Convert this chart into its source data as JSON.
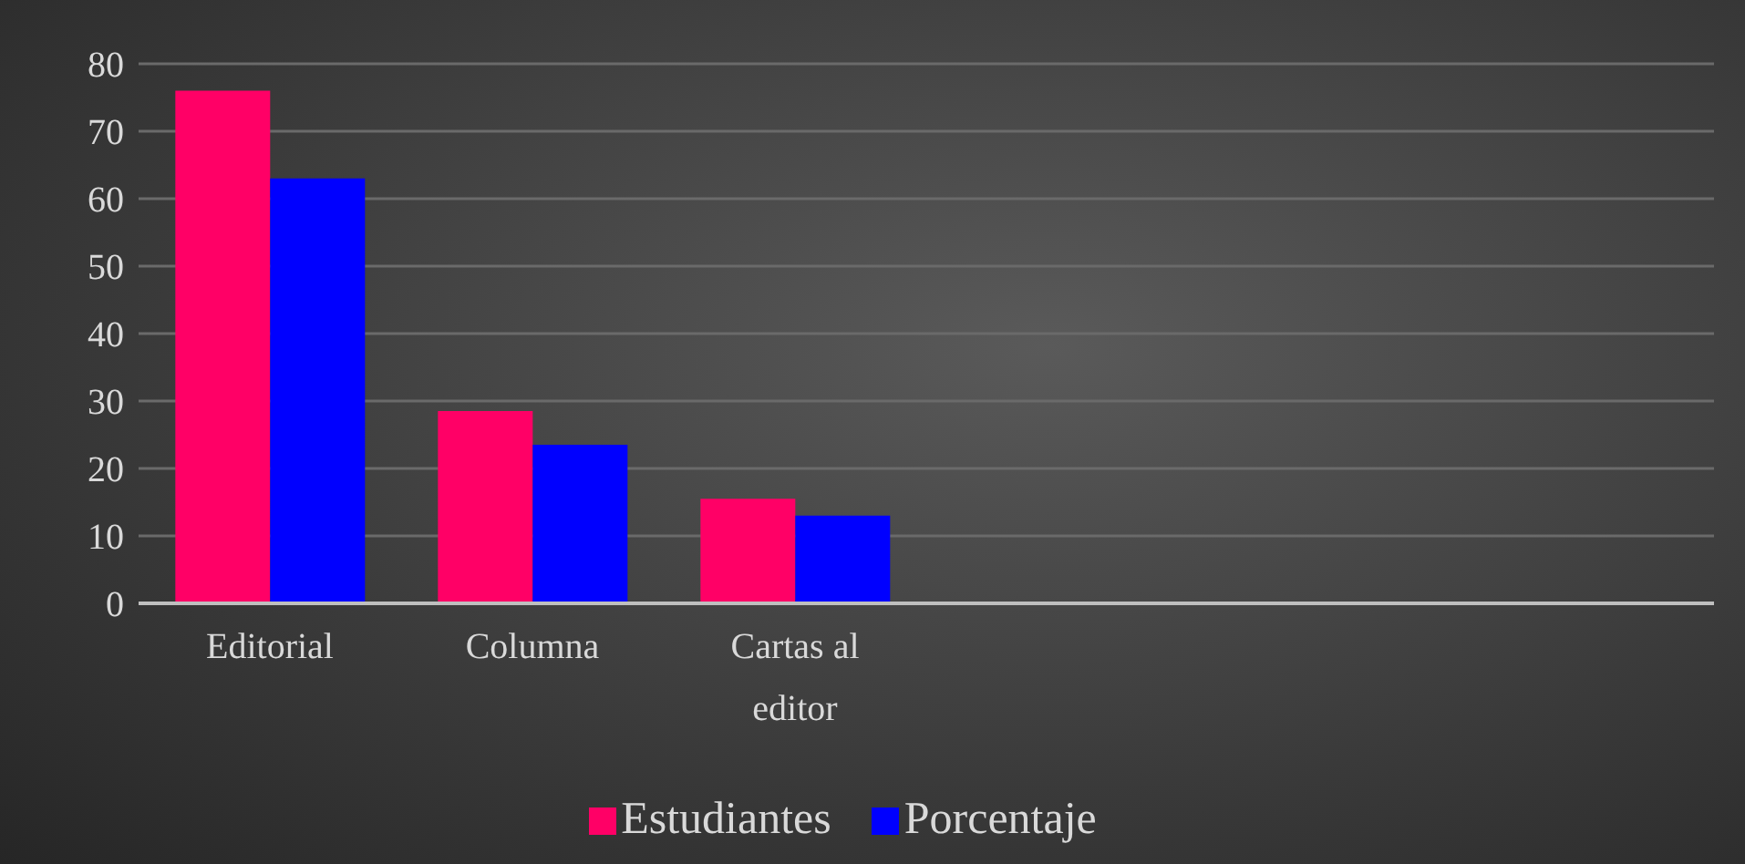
{
  "chart_data": {
    "type": "bar",
    "categories": [
      "Editorial",
      "Columna",
      "Cartas al editor",
      null,
      null,
      null
    ],
    "series": [
      {
        "name": "Estudiantes",
        "color": "#ff0066",
        "values": [
          76,
          28.5,
          15.5,
          null,
          null,
          null
        ]
      },
      {
        "name": "Porcentaje",
        "color": "#0000ff",
        "values": [
          63,
          23.5,
          13,
          null,
          null,
          null
        ]
      }
    ],
    "ylim": [
      0,
      80
    ],
    "yticks": [
      0,
      10,
      20,
      30,
      40,
      50,
      60,
      70,
      80
    ],
    "grid": "y",
    "legend": "bottom"
  }
}
